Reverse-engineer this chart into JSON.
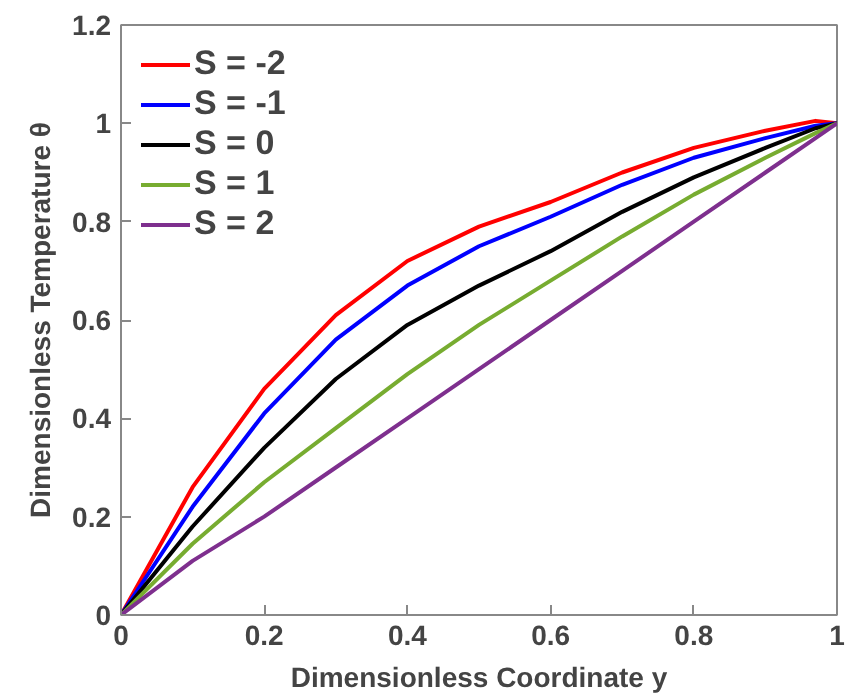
{
  "chart_data": {
    "type": "line",
    "xlabel": "Dimensionless Coordinate y",
    "ylabel": "Dimensionless Temperature θ",
    "x": [
      0,
      0.1,
      0.2,
      0.3,
      0.4,
      0.5,
      0.6,
      0.7,
      0.8,
      0.9,
      0.97,
      1
    ],
    "series": [
      {
        "name": "S = -2",
        "color": "#ff0000",
        "values": [
          0,
          0.26,
          0.46,
          0.61,
          0.72,
          0.79,
          0.84,
          0.9,
          0.95,
          0.985,
          1.005,
          1
        ]
      },
      {
        "name": "S = -1",
        "color": "#0000ff",
        "values": [
          0,
          0.22,
          0.41,
          0.56,
          0.67,
          0.75,
          0.81,
          0.875,
          0.93,
          0.97,
          0.995,
          1
        ]
      },
      {
        "name": "S = 0",
        "color": "#000000",
        "values": [
          0,
          0.18,
          0.34,
          0.48,
          0.59,
          0.67,
          0.74,
          0.82,
          0.89,
          0.95,
          0.99,
          1
        ]
      },
      {
        "name": "S = 1",
        "color": "#77ac30",
        "values": [
          0,
          0.145,
          0.27,
          0.38,
          0.49,
          0.59,
          0.68,
          0.77,
          0.855,
          0.93,
          0.98,
          1
        ]
      },
      {
        "name": "S = 2",
        "color": "#7e2f8e",
        "values": [
          0,
          0.11,
          0.2,
          0.3,
          0.4,
          0.5,
          0.6,
          0.7,
          0.8,
          0.9,
          0.97,
          1
        ]
      }
    ],
    "xlim": [
      0,
      1
    ],
    "ylim": [
      0,
      1.2
    ],
    "xticks": [
      0,
      0.2,
      0.4,
      0.6,
      0.8,
      1
    ],
    "yticks": [
      0,
      0.2,
      0.4,
      0.6,
      0.8,
      1,
      1.2
    ],
    "grid": false,
    "legend": "top left",
    "marker": "none",
    "line_style": "solid"
  }
}
